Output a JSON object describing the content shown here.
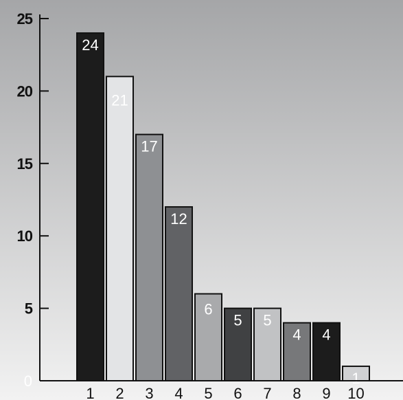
{
  "chart_data": {
    "type": "bar",
    "categories": [
      "1",
      "2",
      "3",
      "4",
      "5",
      "6",
      "7",
      "8",
      "9",
      "10"
    ],
    "values": [
      24,
      21,
      17,
      12,
      6,
      5,
      5,
      4,
      4,
      1
    ],
    "data_labels": [
      "24",
      "21",
      "17",
      "12",
      "6",
      "5",
      "5",
      "4",
      "4",
      "1"
    ],
    "title": "",
    "xlabel": "",
    "ylabel": "",
    "ylim": [
      0,
      25
    ],
    "y_ticks": [
      "0",
      "5",
      "10",
      "15",
      "20",
      "25"
    ],
    "grid": false,
    "legend": "none",
    "bar_colors": [
      "#1c1c1c",
      "#e3e4e6",
      "#8e9093",
      "#616265",
      "#a9aaac",
      "#404143",
      "#c1c2c4",
      "#77787a",
      "#1c1c1c",
      "#d0d1d3"
    ],
    "background_gradient": [
      "#a5a6a8",
      "#f2f2f2"
    ]
  }
}
